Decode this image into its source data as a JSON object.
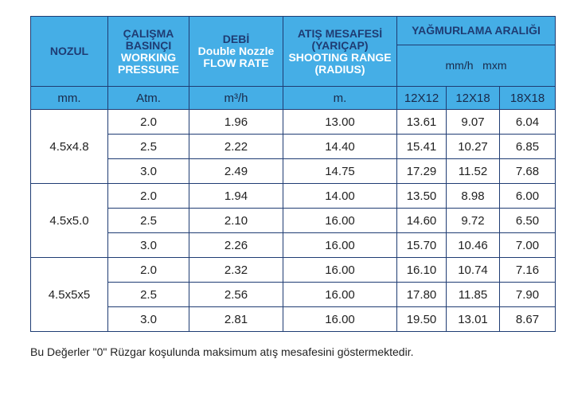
{
  "table": {
    "header": {
      "nozzle": "NOZUL",
      "pressure_tr": "ÇALIŞMA BASINÇI",
      "pressure_en": "WORKING PRESSURE",
      "flow_tr": "DEBİ",
      "flow_en": "Double Nozzle FLOW RATE",
      "range_tr": "ATIŞ MESAFESİ (YARIÇAP)",
      "range_en": "SHOOTING RANGE (RADIUS)",
      "spacing": "YAĞMURLAMA ARALIĞI",
      "spacing_units": "mm/h   mxm"
    },
    "units": [
      "mm.",
      "Atm.",
      "m³/h",
      "m.",
      "12X12",
      "12X18",
      "18X18"
    ],
    "groups": [
      {
        "nozzle": "4.5x4.8",
        "rows": [
          [
            "2.0",
            "1.96",
            "13.00",
            "13.61",
            "9.07",
            "6.04"
          ],
          [
            "2.5",
            "2.22",
            "14.40",
            "15.41",
            "10.27",
            "6.85"
          ],
          [
            "3.0",
            "2.49",
            "14.75",
            "17.29",
            "11.52",
            "7.68"
          ]
        ]
      },
      {
        "nozzle": "4.5x5.0",
        "rows": [
          [
            "2.0",
            "1.94",
            "14.00",
            "13.50",
            "8.98",
            "6.00"
          ],
          [
            "2.5",
            "2.10",
            "16.00",
            "14.60",
            "9.72",
            "6.50"
          ],
          [
            "3.0",
            "2.26",
            "16.00",
            "15.70",
            "10.46",
            "7.00"
          ]
        ]
      },
      {
        "nozzle": "4.5x5x5",
        "rows": [
          [
            "2.0",
            "2.32",
            "16.00",
            "16.10",
            "10.74",
            "7.16"
          ],
          [
            "2.5",
            "2.56",
            "16.00",
            "17.80",
            "11.85",
            "7.90"
          ],
          [
            "3.0",
            "2.81",
            "16.00",
            "19.50",
            "13.01",
            "8.67"
          ]
        ]
      }
    ]
  },
  "footnote": "Bu Değerler \"0\" Rüzgar koşulunda maksimum atış mesafesini göstermektedir."
}
